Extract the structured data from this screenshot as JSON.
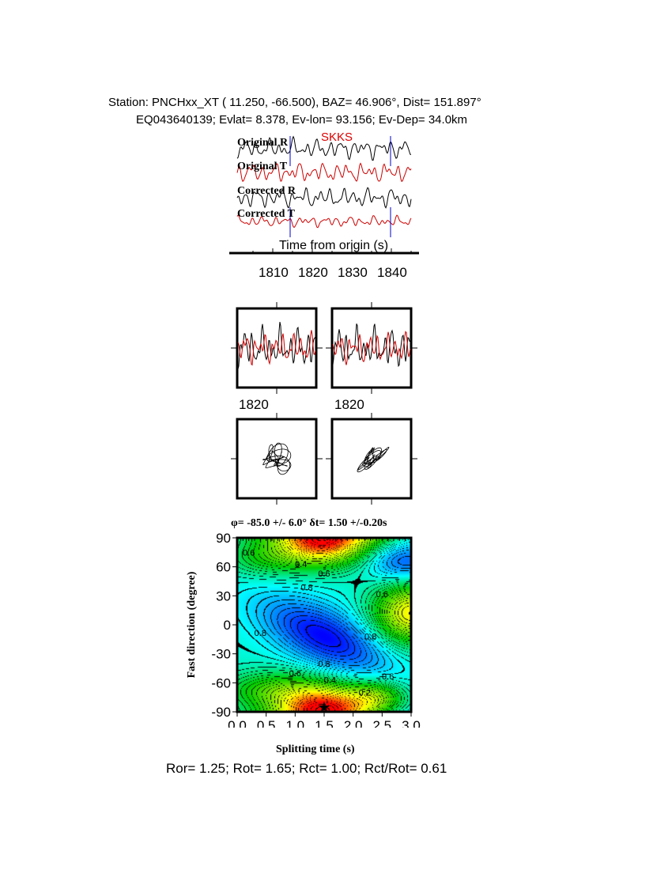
{
  "header": {
    "line1": "Station: PNCHxx_XT (  11.250,  -66.500), BAZ=   46.906°, Dist=  151.897°",
    "line2": "EQ043640139; Evlat=   8.378, Ev-lon=  93.156; Ev-Dep= 34.0km"
  },
  "traces": {
    "phase": "SKKS",
    "labels": [
      "Original R",
      "Original T",
      "Corrected R",
      "Corrected T"
    ],
    "xlabel": "Time from origin (s)",
    "xticks": [
      "1810",
      "1820",
      "1830",
      "1840"
    ],
    "xlim": [
      1801,
      1845
    ],
    "picks": [
      1814.4,
      1839.8
    ],
    "colors": {
      "R": "#000000",
      "T": "#cc0000",
      "pick": "#0000cc",
      "phase": "#dd0000"
    }
  },
  "windows": {
    "tick_label_left": "1820",
    "tick_label_right": "1820"
  },
  "chart_data": {
    "type": "heatmap",
    "title": "φ= -85.0 +/- 6.0° δt= 1.50 +/-0.20s",
    "xlabel": "Splitting time (s)",
    "ylabel": "Fast direction (degree)",
    "xlim": [
      0,
      3
    ],
    "ylim": [
      -90,
      90
    ],
    "xticks": [
      "0.0",
      "0.5",
      "1.0",
      "1.5",
      "2.0",
      "2.5",
      "3.0"
    ],
    "yticks": [
      "90",
      "60",
      "30",
      "0",
      "-30",
      "-60",
      "-90"
    ],
    "best": {
      "dt": 1.5,
      "phi": -85
    },
    "contour_labels": [
      {
        "text": "0.6",
        "x": 0.2,
        "y": 75
      },
      {
        "text": "0.4",
        "x": 1.1,
        "y": 63
      },
      {
        "text": "0.6",
        "x": 1.5,
        "y": 53
      },
      {
        "text": "0.8",
        "x": 1.2,
        "y": 39
      },
      {
        "text": "0.6",
        "x": 2.5,
        "y": 32
      },
      {
        "text": "0.8",
        "x": 0.4,
        "y": -8
      },
      {
        "text": "0.8",
        "x": 2.3,
        "y": -12
      },
      {
        "text": "0.8",
        "x": 1.5,
        "y": -40
      },
      {
        "text": "0.6",
        "x": 1.0,
        "y": -50
      },
      {
        "text": "0.4",
        "x": 1.6,
        "y": -57
      },
      {
        "text": "0.6",
        "x": 2.6,
        "y": -53
      },
      {
        "text": "0.2",
        "x": 2.2,
        "y": -70
      }
    ],
    "colormap": [
      "#ff0000",
      "#ffff00",
      "#00cc00",
      "#00ffff",
      "#0000ff"
    ]
  },
  "footer": "Ror= 1.25; Rot= 1.65; Rct= 1.00; Rct/Rot= 0.61"
}
